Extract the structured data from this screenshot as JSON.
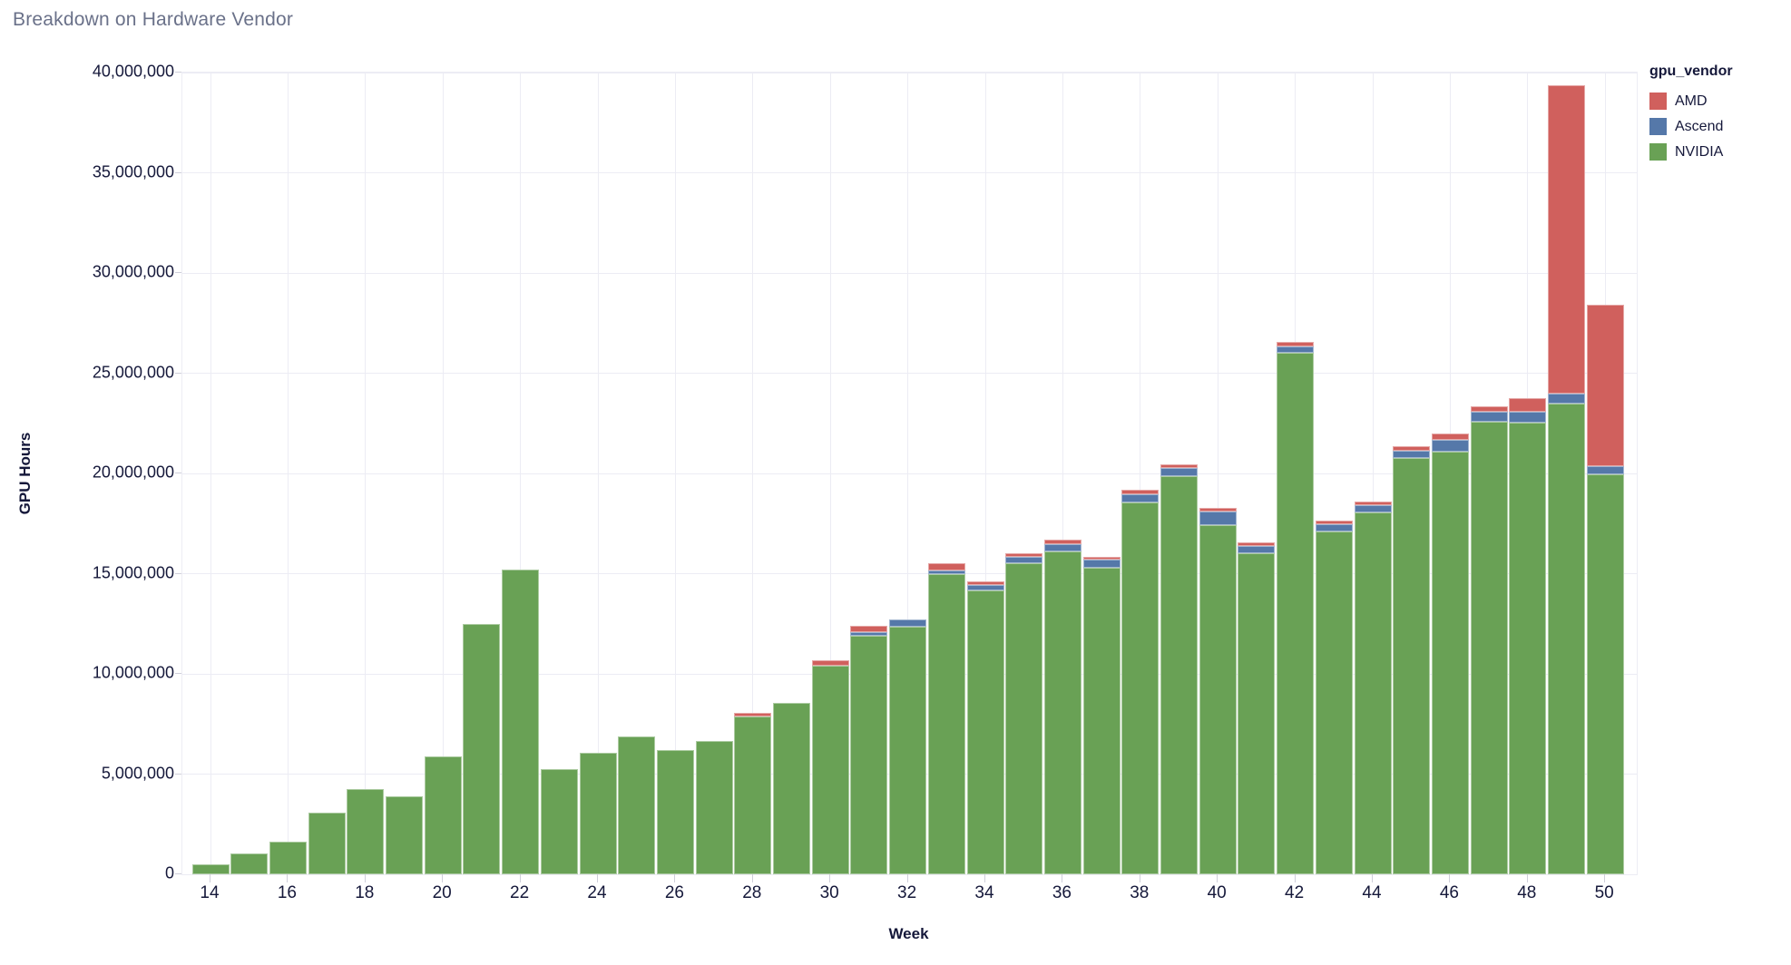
{
  "title": "Breakdown on Hardware Vendor",
  "legend": {
    "title": "gpu_vendor",
    "items": [
      {
        "label": "AMD",
        "color": "#d0605d"
      },
      {
        "label": "Ascend",
        "color": "#5578a9"
      },
      {
        "label": "NVIDIA",
        "color": "#69a155"
      }
    ]
  },
  "chart_data": {
    "type": "bar",
    "stacked": true,
    "title": "Breakdown on Hardware Vendor",
    "xlabel": "Week",
    "ylabel": "GPU Hours",
    "grid": true,
    "legend_position": "right",
    "ylim": [
      0,
      40000000
    ],
    "y_ticks": [
      0,
      5000000,
      10000000,
      15000000,
      20000000,
      25000000,
      30000000,
      35000000,
      40000000
    ],
    "y_tick_labels": [
      "0",
      "5,000,000",
      "10,000,000",
      "15,000,000",
      "20,000,000",
      "25,000,000",
      "30,000,000",
      "35,000,000",
      "40,000,000"
    ],
    "x": [
      14,
      15,
      16,
      17,
      18,
      19,
      20,
      21,
      22,
      23,
      24,
      25,
      26,
      27,
      28,
      29,
      30,
      31,
      32,
      33,
      34,
      35,
      36,
      37,
      38,
      39,
      40,
      41,
      42,
      43,
      44,
      45,
      46,
      47,
      48,
      49,
      50
    ],
    "x_ticks": [
      14,
      16,
      18,
      20,
      22,
      24,
      26,
      28,
      30,
      32,
      34,
      36,
      38,
      40,
      42,
      44,
      46,
      48,
      50
    ],
    "x_tick_labels": [
      "14",
      "16",
      "18",
      "20",
      "22",
      "24",
      "26",
      "28",
      "30",
      "32",
      "34",
      "36",
      "38",
      "40",
      "42",
      "44",
      "46",
      "48",
      "50"
    ],
    "stack_order_bottom_to_top": [
      "NVIDIA",
      "Ascend",
      "AMD"
    ],
    "series": [
      {
        "name": "NVIDIA",
        "color": "#69a155",
        "values": [
          500000,
          1050000,
          1650000,
          3100000,
          4250000,
          3900000,
          5900000,
          12500000,
          15200000,
          5250000,
          6050000,
          6900000,
          6200000,
          6650000,
          7870000,
          8550000,
          10400000,
          11900000,
          12350000,
          15000000,
          14150000,
          15500000,
          16100000,
          15300000,
          18550000,
          19850000,
          17400000,
          16000000,
          26000000,
          17100000,
          18050000,
          20750000,
          21100000,
          22600000,
          22550000,
          23500000,
          19950000
        ]
      },
      {
        "name": "Ascend",
        "color": "#5578a9",
        "values": [
          0,
          0,
          0,
          0,
          0,
          0,
          0,
          0,
          0,
          0,
          0,
          0,
          0,
          0,
          0,
          0,
          0,
          200000,
          360000,
          180000,
          270000,
          320000,
          360000,
          410000,
          410000,
          410000,
          680000,
          360000,
          320000,
          360000,
          360000,
          360000,
          590000,
          500000,
          540000,
          500000,
          400000
        ]
      },
      {
        "name": "AMD",
        "color": "#d0605d",
        "values": [
          0,
          0,
          0,
          0,
          0,
          0,
          0,
          0,
          0,
          0,
          0,
          0,
          0,
          0,
          180000,
          0,
          270000,
          300000,
          0,
          360000,
          180000,
          180000,
          230000,
          140000,
          230000,
          180000,
          180000,
          180000,
          230000,
          180000,
          180000,
          230000,
          320000,
          230000,
          680000,
          15350000,
          8050000
        ]
      }
    ]
  }
}
